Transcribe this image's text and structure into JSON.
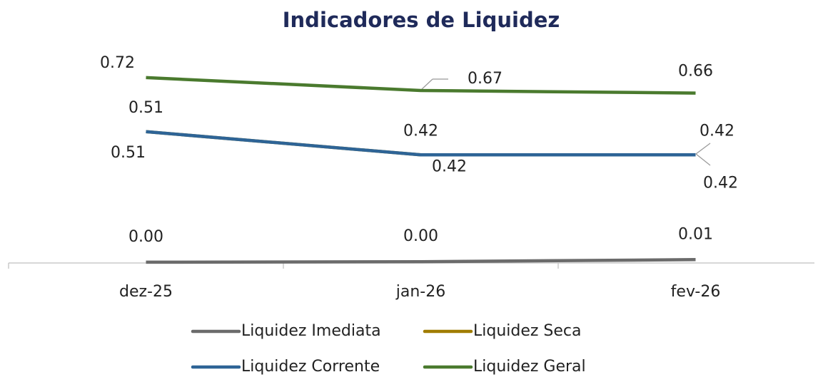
{
  "chart_data": {
    "type": "line",
    "title": "Indicadores de Liquidez",
    "categories": [
      "dez-25",
      "jan-26",
      "fev-26"
    ],
    "ylim": [
      0,
      0.8
    ],
    "series": [
      {
        "name": "Liquidez Imediata",
        "color": "#6b6b6b",
        "values": [
          0.003,
          0.005,
          0.013
        ],
        "value_labels": [
          "0.00",
          "0.00",
          "0.01"
        ]
      },
      {
        "name": "Liquidez Seca",
        "color": "#a07c00",
        "values": [
          0.51,
          0.42,
          0.42
        ]
      },
      {
        "name": "Liquidez Corrente",
        "color": "#2e6496",
        "values": [
          0.51,
          0.42,
          0.42
        ]
      },
      {
        "name": "Liquidez Geral",
        "color": "#4a7a2e",
        "values": [
          0.72,
          0.67,
          0.66
        ]
      }
    ],
    "legend": "bottom"
  }
}
